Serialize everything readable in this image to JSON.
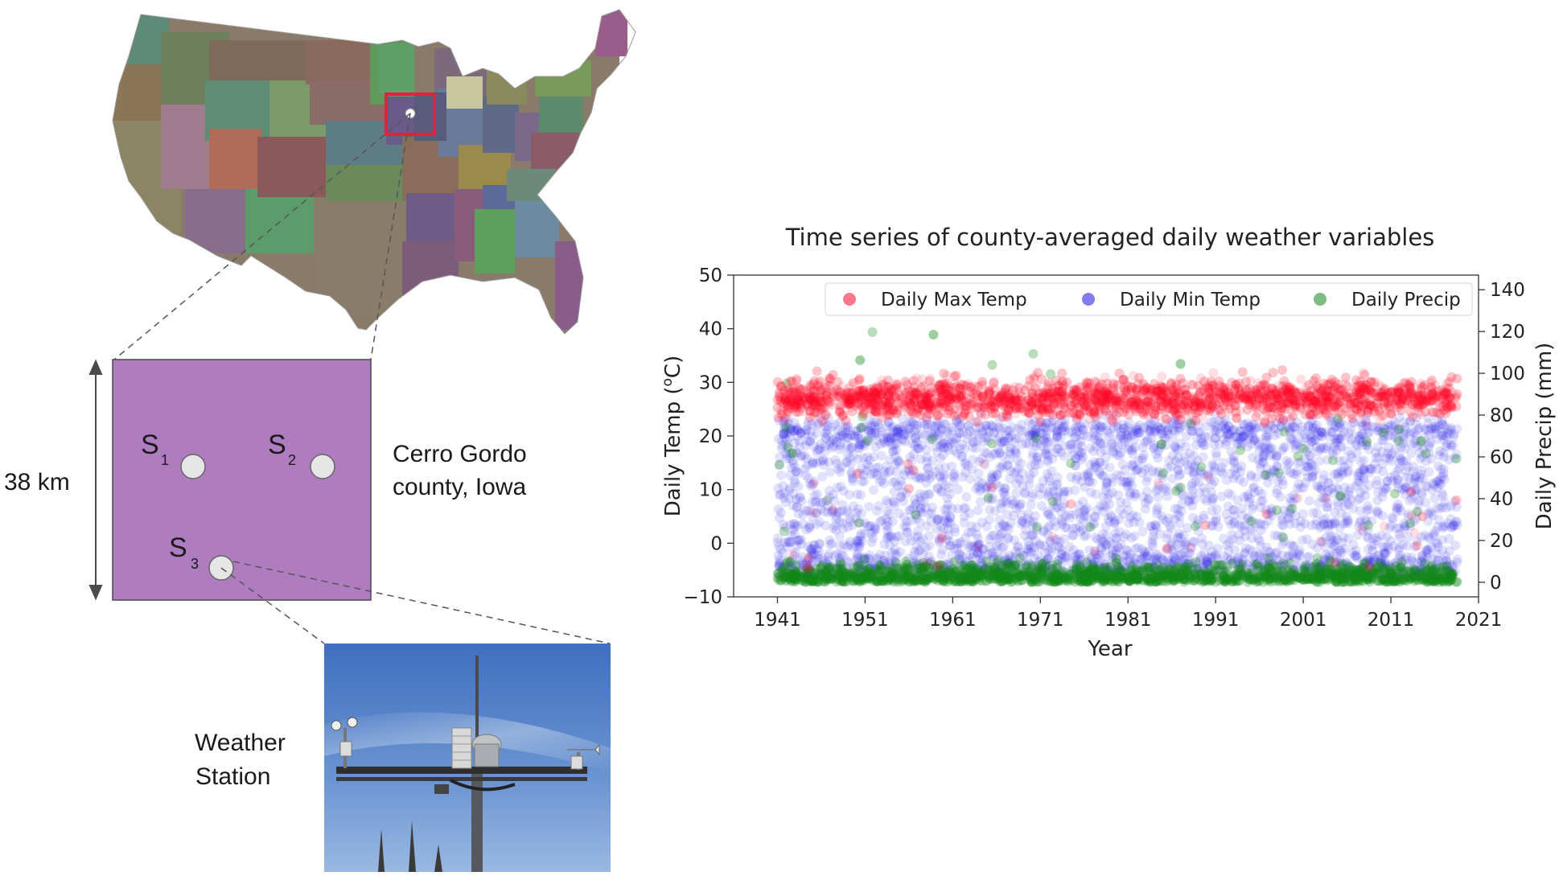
{
  "diagram": {
    "distance_label": "38 km",
    "county_label_line1": "Cerro Gordo",
    "county_label_line2": "county, Iowa",
    "stations": [
      {
        "letter": "S",
        "sub": "1"
      },
      {
        "letter": "S",
        "sub": "2"
      },
      {
        "letter": "S",
        "sub": "3"
      }
    ],
    "station_label_line1": "Weather",
    "station_label_line2": "Station",
    "colors": {
      "county_fill": "#b07cc0",
      "highlight_box": "#e0213f",
      "station_dot": "#e6e6e6",
      "sky": "#5b86c9"
    }
  },
  "chart_data": {
    "type": "scatter",
    "title": "Time series of county-averaged daily weather variables",
    "xlabel": "Year",
    "ylabel": "Daily Temp (°C)",
    "ylabel_base": "Daily Temp (",
    "ylabel_sup": "o",
    "ylabel_end": "C)",
    "y2label": "Daily Precip (mm)",
    "xlim": [
      1936,
      2021
    ],
    "ylim": [
      -10,
      50
    ],
    "y2lim": [
      -7,
      147
    ],
    "xticks": [
      1941,
      1951,
      1961,
      1971,
      1981,
      1991,
      2001,
      2011,
      2021
    ],
    "yticks": [
      -10,
      0,
      10,
      20,
      30,
      40,
      50
    ],
    "y2ticks": [
      0,
      20,
      40,
      60,
      80,
      100,
      120,
      140
    ],
    "grid": false,
    "legend_position": "top-right",
    "data_range_years": [
      1941,
      2018
    ],
    "series": [
      {
        "name": "Daily Max Temp",
        "color": "#ff0a2a",
        "axis": "left",
        "typical_range": [
          20,
          35
        ],
        "extremes": [
          -5,
          40
        ]
      },
      {
        "name": "Daily Min Temp",
        "color": "#1a12e6",
        "axis": "left",
        "typical_range": [
          -5,
          22
        ],
        "extremes": [
          -10,
          25
        ]
      },
      {
        "name": "Daily Precip",
        "color": "#12861a",
        "axis": "right",
        "typical_range": [
          0,
          20
        ],
        "extremes": [
          0,
          120
        ]
      }
    ]
  }
}
